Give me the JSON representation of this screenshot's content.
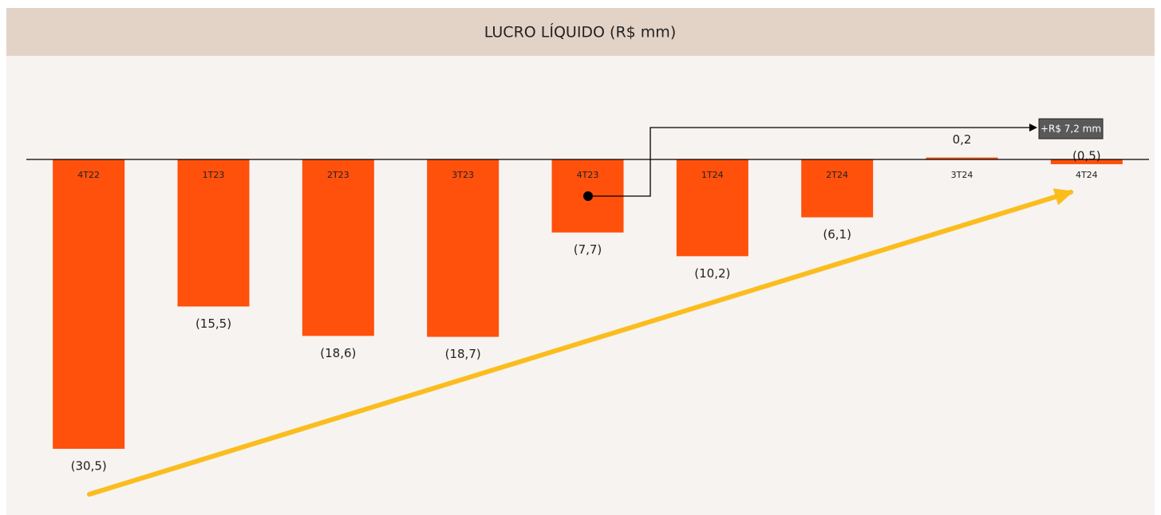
{
  "chart_data": {
    "type": "bar",
    "title": "LUCRO LÍQUIDO (R$ mm)",
    "categories": [
      "4T22",
      "1T23",
      "2T23",
      "3T23",
      "4T23",
      "1T24",
      "2T24",
      "3T24",
      "4T24"
    ],
    "values": [
      -30.5,
      -15.5,
      -18.6,
      -18.7,
      -7.7,
      -10.2,
      -6.1,
      0.2,
      -0.5
    ],
    "value_labels": [
      "(30,5)",
      "(15,5)",
      "(18,6)",
      "(18,7)",
      "(7,7)",
      "(10,2)",
      "(6,1)",
      "0,2",
      "(0,5)"
    ],
    "color": "#ff500c",
    "ylim": [
      -35,
      8
    ],
    "annotation": "+R$ 7,2 mm"
  }
}
